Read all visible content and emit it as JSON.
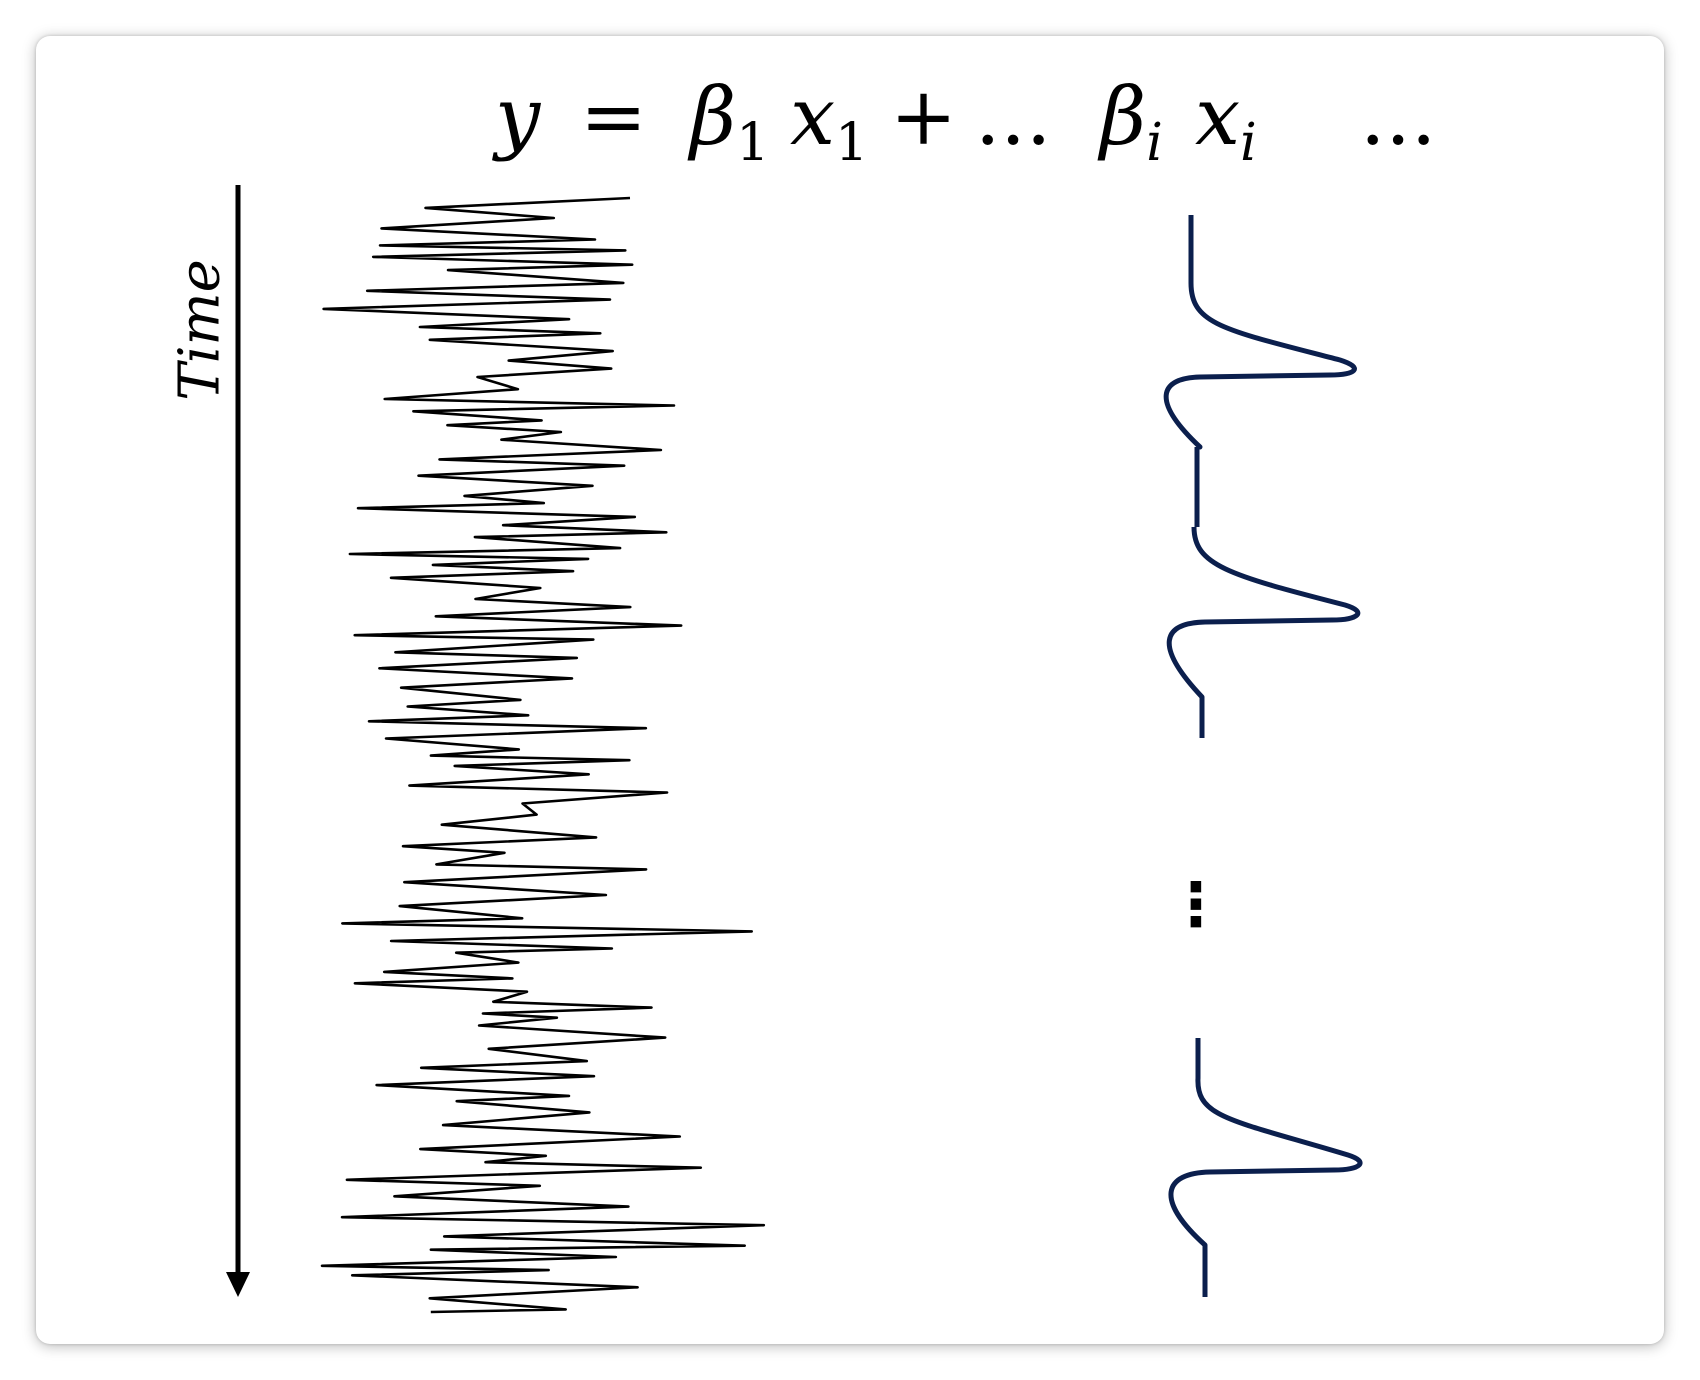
{
  "equation": {
    "y": "y",
    "equals": "=",
    "beta": "β",
    "x": "x",
    "sub_1": "1",
    "plus": "+",
    "ellipsis_1": "...",
    "sub_i": "i",
    "ellipsis_2": "..."
  },
  "time_axis": {
    "label": "Time"
  },
  "regressor_column": {
    "vertical_ellipsis": "⋮",
    "line_color": "#0b1f4d"
  },
  "signal_color": "#000000"
}
